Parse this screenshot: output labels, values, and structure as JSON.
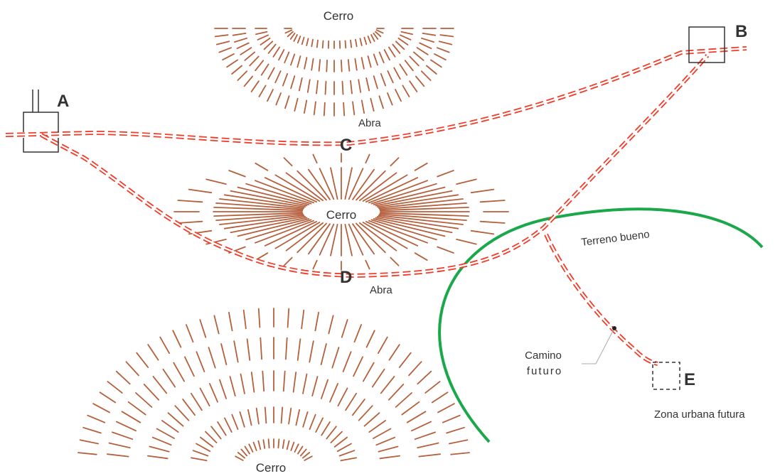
{
  "colors": {
    "road": "#f03c28",
    "hachure": "#b5603c",
    "boundary": "#1aa84a",
    "outline": "#333333",
    "text": "#333333"
  },
  "points": {
    "a": "A",
    "b": "B",
    "c": "C",
    "d": "D",
    "e": "E"
  },
  "labels": {
    "hill_top": "Cerro",
    "hill_center": "Cerro",
    "hill_bottom": "Cerro",
    "pass_upper": "Abra",
    "pass_lower": "Abra",
    "good_terrain": "Terreno bueno",
    "future_road_line1": "Camino",
    "future_road_line2": "futuro",
    "future_urban_zone": "Zona urbana futura"
  }
}
